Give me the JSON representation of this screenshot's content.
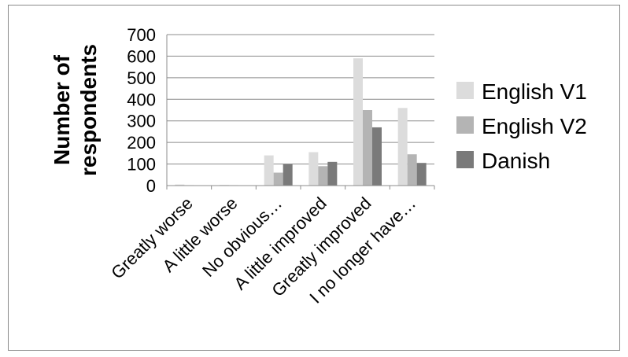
{
  "chart_data": {
    "type": "bar",
    "categories": [
      "Greatly worse",
      "A little worse",
      "No obvious…",
      "A little improved",
      "Greatly improved",
      "I no longer have…"
    ],
    "series": [
      {
        "name": "English V1",
        "color": "#dcdcdc",
        "values": [
          5,
          3,
          140,
          155,
          590,
          360
        ]
      },
      {
        "name": "English V2",
        "color": "#b4b4b4",
        "values": [
          2,
          2,
          60,
          90,
          350,
          145
        ]
      },
      {
        "name": "Danish",
        "color": "#7a7a7a",
        "values": [
          1,
          1,
          100,
          110,
          270,
          105
        ]
      }
    ],
    "ylabel_lines": [
      "Number of",
      "respondents"
    ],
    "ylim": [
      0,
      700
    ],
    "yticks": [
      0,
      100,
      200,
      300,
      400,
      500,
      600,
      700
    ],
    "grid": true,
    "legend_position": "right"
  }
}
